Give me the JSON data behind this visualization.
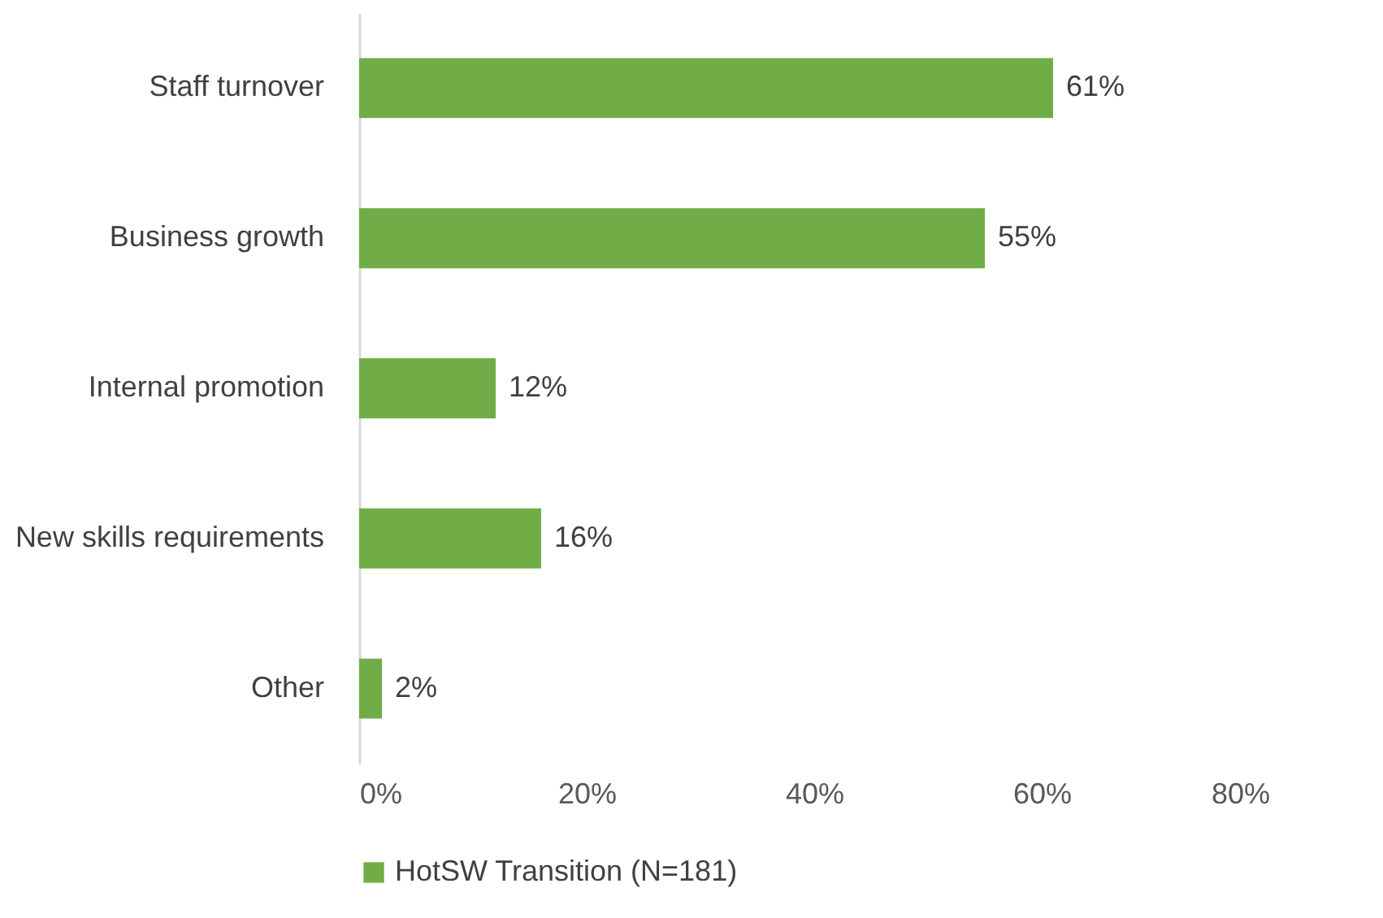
{
  "chart_data": {
    "type": "bar",
    "orientation": "horizontal",
    "categories": [
      "Staff turnover",
      "Business growth",
      "Internal promotion",
      "New skills requirements",
      "Other"
    ],
    "series": [
      {
        "name": "HotSW Transition (N=181)",
        "color": "#70ad47",
        "values": [
          61,
          55,
          12,
          16,
          2
        ],
        "value_labels": [
          "61%",
          "55%",
          "12%",
          "16%",
          "2%"
        ]
      }
    ],
    "xlim": [
      0,
      80
    ],
    "xticks": [
      {
        "value": 0,
        "label": "0%"
      },
      {
        "value": 20,
        "label": "20%"
      },
      {
        "value": 40,
        "label": "40%"
      },
      {
        "value": 60,
        "label": "60%"
      },
      {
        "value": 80,
        "label": "80%"
      }
    ],
    "legend": "bottom"
  }
}
